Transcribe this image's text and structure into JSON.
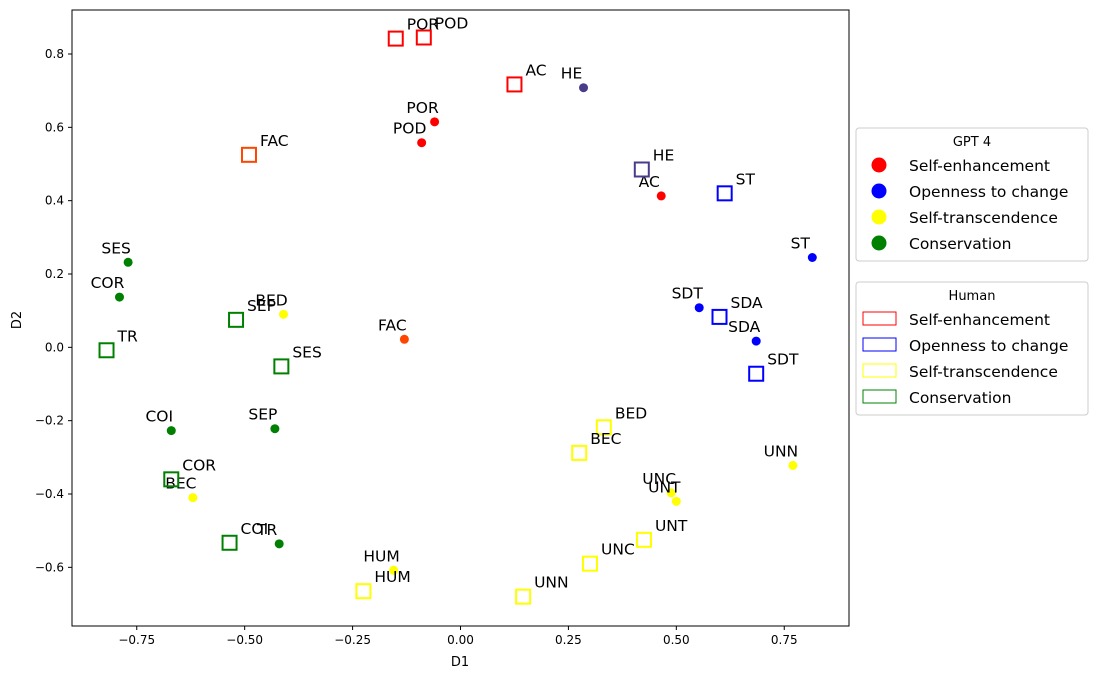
{
  "chart_data": {
    "type": "scatter",
    "title": "",
    "xlabel": "D1",
    "ylabel": "D2",
    "xlim": [
      -0.9,
      0.9
    ],
    "ylim": [
      -0.76,
      0.92
    ],
    "xticks": [
      -0.75,
      -0.5,
      -0.25,
      0.0,
      0.25,
      0.5,
      0.75
    ],
    "xtick_labels": [
      "−0.75",
      "−0.50",
      "−0.25",
      "0.00",
      "0.25",
      "0.50",
      "0.75"
    ],
    "yticks": [
      -0.6,
      -0.4,
      -0.2,
      0.0,
      0.2,
      0.4,
      0.6,
      0.8
    ],
    "ytick_labels": [
      "−0.6",
      "−0.4",
      "−0.2",
      "0.0",
      "0.2",
      "0.4",
      "0.6",
      "0.8"
    ],
    "colors": {
      "Self-enhancement": "#ff0000",
      "Openness to change": "#0000ff",
      "Self-transcendence": "#ffff00",
      "Conservation": "#008000",
      "HE": "#483d8b",
      "FAC": "#ff4500"
    },
    "series": [
      {
        "name": "GPT 4",
        "marker": "circle",
        "points": [
          {
            "label": "POR",
            "x": -0.06,
            "y": 0.615,
            "color": "#ff0000"
          },
          {
            "label": "POD",
            "x": -0.09,
            "y": 0.558,
            "color": "#ff0000"
          },
          {
            "label": "AC",
            "x": 0.465,
            "y": 0.413,
            "color": "#ff0000"
          },
          {
            "label": "HE",
            "x": 0.285,
            "y": 0.708,
            "color": "#483d8b"
          },
          {
            "label": "FAC",
            "x": -0.13,
            "y": 0.022,
            "color": "#ff4500"
          },
          {
            "label": "ST",
            "x": 0.815,
            "y": 0.245,
            "color": "#0000ff"
          },
          {
            "label": "SDT",
            "x": 0.553,
            "y": 0.108,
            "color": "#0000ff"
          },
          {
            "label": "SDA",
            "x": 0.685,
            "y": 0.017,
            "color": "#0000ff"
          },
          {
            "label": "BED",
            "x": -0.41,
            "y": 0.09,
            "color": "#ffff00"
          },
          {
            "label": "BEC",
            "x": -0.62,
            "y": -0.41,
            "color": "#ffff00"
          },
          {
            "label": "HUM",
            "x": -0.155,
            "y": -0.608,
            "color": "#ffff00"
          },
          {
            "label": "UNC",
            "x": 0.488,
            "y": -0.397,
            "color": "#ffff00"
          },
          {
            "label": "UNT",
            "x": 0.5,
            "y": -0.42,
            "color": "#ffff00"
          },
          {
            "label": "UNN",
            "x": 0.77,
            "y": -0.322,
            "color": "#ffff00"
          },
          {
            "label": "SES",
            "x": -0.77,
            "y": 0.232,
            "color": "#008000"
          },
          {
            "label": "COR",
            "x": -0.79,
            "y": 0.137,
            "color": "#008000"
          },
          {
            "label": "SEP",
            "x": -0.43,
            "y": -0.222,
            "color": "#008000"
          },
          {
            "label": "COI",
            "x": -0.67,
            "y": -0.227,
            "color": "#008000"
          },
          {
            "label": "TR",
            "x": -0.42,
            "y": -0.536,
            "color": "#008000"
          }
        ]
      },
      {
        "name": "Human",
        "marker": "square",
        "points": [
          {
            "label": "POR",
            "x": -0.15,
            "y": 0.842,
            "color": "#ff0000"
          },
          {
            "label": "POD",
            "x": -0.085,
            "y": 0.845,
            "color": "#ff0000"
          },
          {
            "label": "AC",
            "x": 0.125,
            "y": 0.717,
            "color": "#ff0000"
          },
          {
            "label": "FAC",
            "x": -0.49,
            "y": 0.525,
            "color": "#ff4500"
          },
          {
            "label": "HE",
            "x": 0.42,
            "y": 0.485,
            "color": "#483d8b"
          },
          {
            "label": "ST",
            "x": 0.612,
            "y": 0.42,
            "color": "#0000ff"
          },
          {
            "label": "SDA",
            "x": 0.6,
            "y": 0.083,
            "color": "#0000ff"
          },
          {
            "label": "SDT",
            "x": 0.685,
            "y": -0.072,
            "color": "#0000ff"
          },
          {
            "label": "BED",
            "x": 0.332,
            "y": -0.218,
            "color": "#ffff00"
          },
          {
            "label": "BEC",
            "x": 0.275,
            "y": -0.288,
            "color": "#ffff00"
          },
          {
            "label": "UNT",
            "x": 0.425,
            "y": -0.525,
            "color": "#ffff00"
          },
          {
            "label": "UNC",
            "x": 0.3,
            "y": -0.59,
            "color": "#ffff00"
          },
          {
            "label": "UNN",
            "x": 0.145,
            "y": -0.68,
            "color": "#ffff00"
          },
          {
            "label": "HUM",
            "x": -0.225,
            "y": -0.665,
            "color": "#ffff00"
          },
          {
            "label": "SEP",
            "x": -0.52,
            "y": 0.075,
            "color": "#008000"
          },
          {
            "label": "SES",
            "x": -0.415,
            "y": -0.052,
            "color": "#008000"
          },
          {
            "label": "TR",
            "x": -0.82,
            "y": -0.008,
            "color": "#008000"
          },
          {
            "label": "COR",
            "x": -0.67,
            "y": -0.36,
            "color": "#008000"
          },
          {
            "label": "COI",
            "x": -0.535,
            "y": -0.533,
            "color": "#008000"
          }
        ]
      }
    ],
    "legends": [
      {
        "title": "GPT 4",
        "marker": "circle",
        "entries": [
          {
            "label": "Self-enhancement",
            "color": "#ff0000"
          },
          {
            "label": "Openness to change",
            "color": "#0000ff"
          },
          {
            "label": "Self-transcendence",
            "color": "#ffff00"
          },
          {
            "label": "Conservation",
            "color": "#008000"
          }
        ]
      },
      {
        "title": "Human",
        "marker": "square",
        "entries": [
          {
            "label": "Self-enhancement",
            "color": "#ff0000"
          },
          {
            "label": "Openness to change",
            "color": "#0000ff"
          },
          {
            "label": "Self-transcendence",
            "color": "#ffff00"
          },
          {
            "label": "Conservation",
            "color": "#008000"
          }
        ]
      }
    ],
    "legend_position": "right"
  }
}
